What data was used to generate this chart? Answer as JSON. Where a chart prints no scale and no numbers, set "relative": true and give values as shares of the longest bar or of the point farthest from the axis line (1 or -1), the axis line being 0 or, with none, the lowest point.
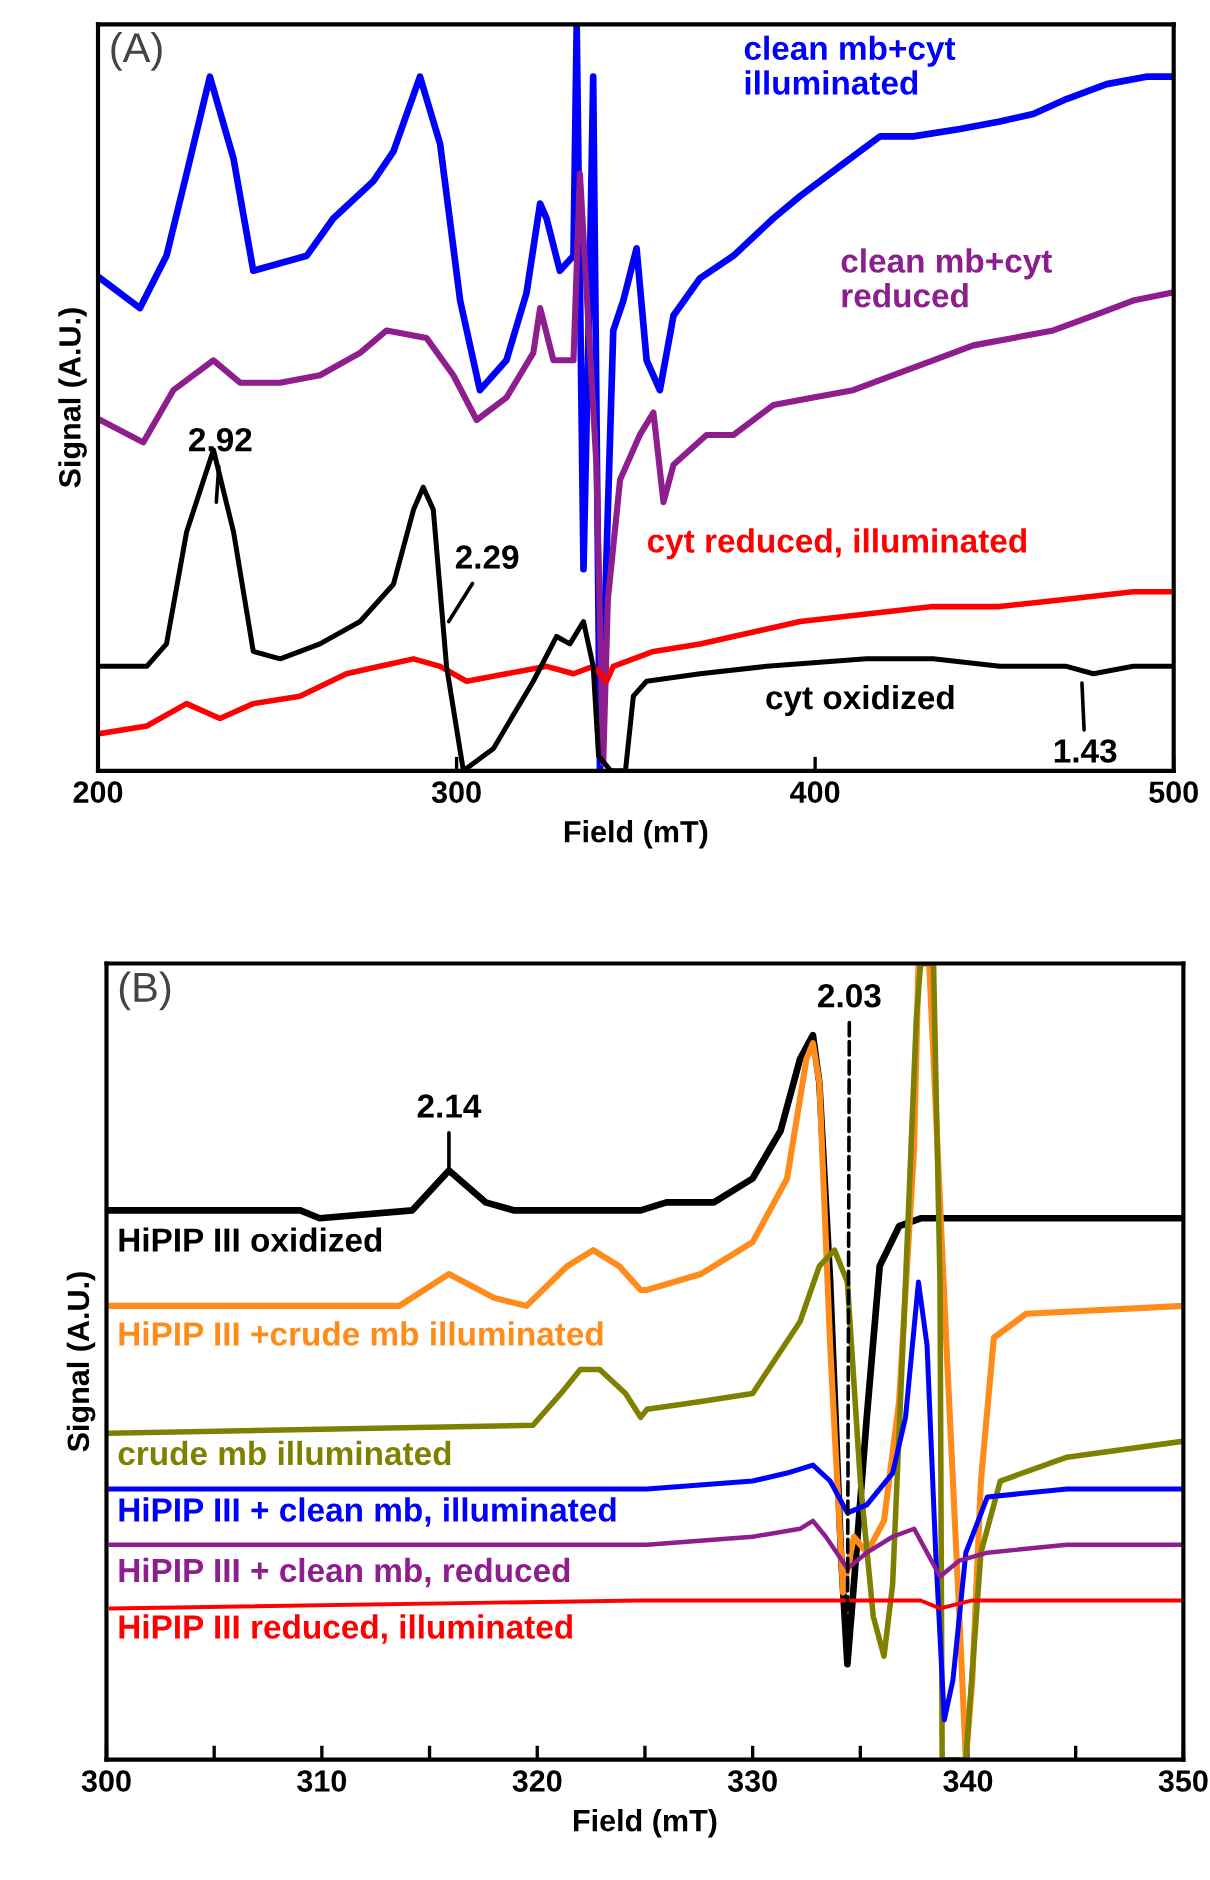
{
  "chart_data": [
    {
      "type": "line",
      "title": "(A)",
      "xlabel": "Field (mT)",
      "ylabel": "Signal (A.U.)",
      "relative": true,
      "legend": false,
      "xlim": [
        200,
        500
      ],
      "xticks": [
        200,
        300,
        400,
        500
      ],
      "series": [
        {
          "name": "clean mb+cyt\nilluminated",
          "color": "#0000ff",
          "x": [
            200.6,
            211.7,
            219.1,
            224.7,
            231.2,
            237.8,
            243.3,
            258.2,
            265.6,
            276.8,
            282.4,
            289.8,
            295.4,
            301,
            306.5,
            313.9,
            319.5,
            323.3,
            325.1,
            328.8,
            332.6,
            333.5,
            335.4,
            337.2,
            338.1,
            340,
            340.9,
            343.7,
            346.5,
            350.2,
            353,
            356.7,
            360.5,
            367.9,
            377.2,
            388.3,
            395.8,
            406.9,
            418.1,
            427.4,
            440.4,
            451.5,
            460.8,
            470.1,
            481.3,
            492.4,
            498.9
          ],
          "values": [
            0.66,
            0.62,
            0.69,
            0.8,
            0.93,
            0.82,
            0.67,
            0.69,
            0.74,
            0.79,
            0.83,
            0.93,
            0.84,
            0.63,
            0.51,
            0.55,
            0.64,
            0.76,
            0.74,
            0.67,
            0.69,
            1.0,
            0.27,
            0.68,
            0.93,
            0.0,
            0.14,
            0.59,
            0.63,
            0.7,
            0.55,
            0.51,
            0.61,
            0.66,
            0.69,
            0.74,
            0.77,
            0.81,
            0.85,
            0.85,
            0.86,
            0.87,
            0.88,
            0.9,
            0.92,
            0.93,
            0.93
          ]
        },
        {
          "name": "clean mb+cyt\nreduced",
          "color": "#8e1e8e",
          "x": [
            200.6,
            212.6,
            221.0,
            232.2,
            239.6,
            250.8,
            261.9,
            273.1,
            280.5,
            291.6,
            299.1,
            305.6,
            313.9,
            321.4,
            323.3,
            327.0,
            332.6,
            334.4,
            339.0,
            340.9,
            342.2,
            345.6,
            351.1,
            354.9,
            357.7,
            360.5,
            369.7,
            377.2,
            388.3,
            399.5,
            410.6,
            421.8,
            432.9,
            444.1,
            455.3,
            466.4,
            477.6,
            488.7,
            498.9
          ],
          "values": [
            0.47,
            0.44,
            0.51,
            0.55,
            0.52,
            0.52,
            0.53,
            0.56,
            0.59,
            0.58,
            0.53,
            0.47,
            0.5,
            0.56,
            0.62,
            0.55,
            0.55,
            0.8,
            0.41,
            0.01,
            0.23,
            0.39,
            0.45,
            0.48,
            0.36,
            0.41,
            0.45,
            0.45,
            0.49,
            0.5,
            0.51,
            0.53,
            0.55,
            0.57,
            0.58,
            0.59,
            0.61,
            0.63,
            0.64
          ]
        },
        {
          "name": "cyt reduced, illuminated",
          "color": "#ff0000",
          "x": [
            200.6,
            213.6,
            224.7,
            234.0,
            243.3,
            256.3,
            269.3,
            278.6,
            288.0,
            295.4,
            302.8,
            313.9,
            325.1,
            332.6,
            338.1,
            341.8,
            343.7,
            354.9,
            367.9,
            377.2,
            395.8,
            414.3,
            432.9,
            451.5,
            470.1,
            488.7,
            499.9
          ],
          "values": [
            0.05,
            0.06,
            0.09,
            0.07,
            0.09,
            0.1,
            0.13,
            0.14,
            0.15,
            0.14,
            0.12,
            0.13,
            0.14,
            0.13,
            0.14,
            0.12,
            0.14,
            0.16,
            0.17,
            0.18,
            0.2,
            0.21,
            0.22,
            0.22,
            0.23,
            0.24,
            0.24
          ]
        },
        {
          "name": "cyt oxidized",
          "color": "#000000",
          "x": [
            200.6,
            213.6,
            219.1,
            224.7,
            232.2,
            237.8,
            243.3,
            250.8,
            261.9,
            273.1,
            282.4,
            288.0,
            290.7,
            293.5,
            297.2,
            301.9,
            310.3,
            321.4,
            327.9,
            331.6,
            335.4,
            338.1,
            339.6,
            343.0,
            347.1,
            349.3,
            353.0,
            367.9,
            386.5,
            414.3,
            432.9,
            451.5,
            470.1,
            477.6,
            488.7,
            499.9
          ],
          "values": [
            0.14,
            0.14,
            0.17,
            0.32,
            0.43,
            0.32,
            0.16,
            0.15,
            0.17,
            0.2,
            0.25,
            0.35,
            0.38,
            0.35,
            0.14,
            0.0,
            0.03,
            0.12,
            0.18,
            0.17,
            0.2,
            0.14,
            0.02,
            0.0,
            0.0,
            0.1,
            0.12,
            0.13,
            0.14,
            0.15,
            0.15,
            0.14,
            0.14,
            0.13,
            0.14,
            0.14
          ]
        }
      ],
      "annotations": [
        {
          "text": "2.92",
          "x": 233,
          "y": 0.36
        },
        {
          "text": "2.29",
          "x": 297.8,
          "y": 0.2
        },
        {
          "text": "1.43",
          "x": 474.2,
          "y": 0.14
        }
      ]
    },
    {
      "type": "line",
      "title": "(B)",
      "xlabel": "Field (mT)",
      "ylabel": "Signal (A.U.)",
      "relative": true,
      "legend": false,
      "xlim": [
        300,
        350
      ],
      "xticks": [
        300,
        {
          "value": 305,
          "label": null
        },
        310,
        {
          "value": 315,
          "label": null
        },
        320,
        {
          "value": 325,
          "label": null
        },
        330,
        {
          "value": 335,
          "label": null
        },
        340,
        {
          "value": 345,
          "label": null
        },
        350
      ],
      "series": [
        {
          "name": "HiPIP III oxidized",
          "color": "#000000",
          "x": [
            300.2,
            309.0,
            309.9,
            314.2,
            315.9,
            317.6,
            318.9,
            324.8,
            326.0,
            328.2,
            330.0,
            331.3,
            332.2,
            332.8,
            333.1,
            333.6,
            334.1,
            334.4,
            334.7,
            335.3,
            335.9,
            336.8,
            337.8,
            341.5,
            350.0
          ],
          "values": [
            0.69,
            0.69,
            0.68,
            0.69,
            0.74,
            0.7,
            0.69,
            0.69,
            0.7,
            0.7,
            0.73,
            0.79,
            0.88,
            0.91,
            0.85,
            0.6,
            0.26,
            0.12,
            0.22,
            0.43,
            0.62,
            0.67,
            0.68,
            0.68,
            0.68
          ]
        },
        {
          "name": "HiPIP III +crude mb illuminated",
          "color": "#ff8c1a",
          "x": [
            300.2,
            313.6,
            315.9,
            318.0,
            319.5,
            321.4,
            322.6,
            323.8,
            324.8,
            325.1,
            327.6,
            330.0,
            331.6,
            332.5,
            332.8,
            333.1,
            333.6,
            334.1,
            334.2,
            334.7,
            335.3,
            336.1,
            336.8,
            337.5,
            337.7,
            338.2,
            339.0,
            339.6,
            339.9,
            340.2,
            340.6,
            341.2,
            342.7,
            350.0
          ],
          "values": [
            0.57,
            0.57,
            0.61,
            0.58,
            0.57,
            0.62,
            0.64,
            0.62,
            0.59,
            0.59,
            0.61,
            0.65,
            0.73,
            0.88,
            0.9,
            0.85,
            0.52,
            0.26,
            0.21,
            0.28,
            0.26,
            0.3,
            0.45,
            0.77,
            1.0,
            1.0,
            0.52,
            0.18,
            0.0,
            0.1,
            0.35,
            0.53,
            0.56,
            0.57
          ]
        },
        {
          "name": "crude mb illuminated",
          "color": "#808000",
          "x": [
            300.2,
            319.8,
            321.1,
            322.0,
            322.9,
            324.1,
            324.8,
            325.1,
            327.6,
            330.0,
            332.2,
            333.1,
            333.8,
            334.4,
            335.0,
            335.6,
            336.1,
            336.5,
            337.1,
            337.6,
            337.8,
            338.4,
            338.7,
            338.8,
            339.9,
            340.6,
            341.5,
            344.6,
            350.0
          ],
          "values": [
            0.41,
            0.42,
            0.46,
            0.49,
            0.49,
            0.46,
            0.43,
            0.44,
            0.45,
            0.46,
            0.55,
            0.62,
            0.64,
            0.6,
            0.35,
            0.18,
            0.13,
            0.22,
            0.6,
            0.93,
            1.0,
            1.0,
            0.6,
            0.0,
            0.0,
            0.26,
            0.35,
            0.38,
            0.4
          ]
        },
        {
          "name": "HiPIP III + clean mb, illuminated",
          "color": "#0000ff",
          "x": [
            300.2,
            324.8,
            325.1,
            330.0,
            331.6,
            332.8,
            333.6,
            334.4,
            335.3,
            336.5,
            337.1,
            337.7,
            338.1,
            338.5,
            338.9,
            339.3,
            339.9,
            340.9,
            344.6,
            350.0
          ],
          "values": [
            0.34,
            0.34,
            0.34,
            0.35,
            0.36,
            0.37,
            0.35,
            0.31,
            0.32,
            0.36,
            0.43,
            0.6,
            0.52,
            0.26,
            0.05,
            0.1,
            0.26,
            0.33,
            0.34,
            0.34
          ]
        },
        {
          "name": "HiPIP III + clean mb, reduced",
          "color": "#8e1e8e",
          "x": [
            300.2,
            324.8,
            325.1,
            330.0,
            332.2,
            332.8,
            333.4,
            334.4,
            335.3,
            336.5,
            337.5,
            338.1,
            338.7,
            339.6,
            340.9,
            344.6,
            350.0
          ],
          "values": [
            0.27,
            0.27,
            0.27,
            0.28,
            0.29,
            0.3,
            0.28,
            0.24,
            0.26,
            0.28,
            0.29,
            0.26,
            0.23,
            0.25,
            0.26,
            0.27,
            0.27
          ]
        },
        {
          "name": "HiPIP III reduced, illuminated",
          "color": "#ff0000",
          "x": [
            300.2,
            324.8,
            325.1,
            337.8,
            338.7,
            340.2,
            350.0
          ],
          "values": [
            0.19,
            0.2,
            0.2,
            0.2,
            0.19,
            0.2,
            0.2
          ]
        }
      ],
      "annotations": [
        {
          "text": "2.14",
          "x": 315.9,
          "y": 0.74
        },
        {
          "text": "2.03",
          "x": 334.4,
          "y": 0.12
        }
      ]
    }
  ]
}
